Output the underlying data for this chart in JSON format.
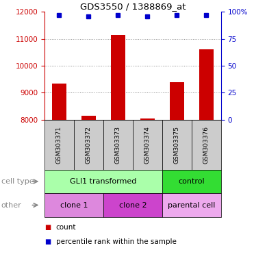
{
  "title": "GDS3550 / 1388869_at",
  "samples": [
    "GSM303371",
    "GSM303372",
    "GSM303373",
    "GSM303374",
    "GSM303375",
    "GSM303376"
  ],
  "counts": [
    9350,
    8150,
    11150,
    8050,
    9400,
    10600
  ],
  "percentile_ranks": [
    97,
    96,
    97,
    96,
    97,
    97
  ],
  "ylim_left": [
    8000,
    12000
  ],
  "ylim_right": [
    0,
    100
  ],
  "yticks_left": [
    8000,
    9000,
    10000,
    11000,
    12000
  ],
  "yticks_right": [
    0,
    25,
    50,
    75,
    100
  ],
  "bar_color": "#cc0000",
  "dot_color": "#0000cc",
  "bar_width": 0.5,
  "cell_type_groups": [
    {
      "label": "GLI1 transformed",
      "samples": [
        0,
        1,
        2,
        3
      ],
      "color": "#aaffaa"
    },
    {
      "label": "control",
      "samples": [
        4,
        5
      ],
      "color": "#33dd33"
    }
  ],
  "other_groups": [
    {
      "label": "clone 1",
      "samples": [
        0,
        1
      ],
      "color": "#dd88dd"
    },
    {
      "label": "clone 2",
      "samples": [
        2,
        3
      ],
      "color": "#cc44cc"
    },
    {
      "label": "parental cell",
      "samples": [
        4,
        5
      ],
      "color": "#eeaaee"
    }
  ],
  "legend_count_color": "#cc0000",
  "legend_dot_color": "#0000cc",
  "background_color": "#ffffff",
  "grid_color": "#888888",
  "tick_label_color_left": "#cc0000",
  "tick_label_color_right": "#0000cc",
  "sample_box_color": "#cccccc",
  "row_label_cell_type": "cell type",
  "row_label_other": "other",
  "row_label_color": "#888888"
}
